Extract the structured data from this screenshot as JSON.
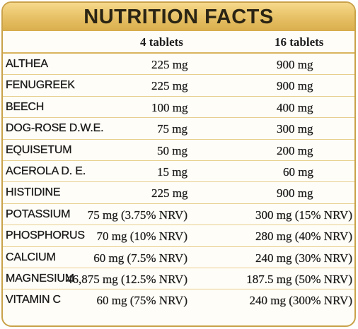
{
  "title": "NUTRITION FACTS",
  "columns": [
    "4 tablets",
    "16 tablets"
  ],
  "rows": [
    {
      "name": "ALTHEA",
      "v1": "225 mg",
      "v2": "900 mg"
    },
    {
      "name": "FENUGREEK",
      "v1": "225 mg",
      "v2": "900 mg"
    },
    {
      "name": "BEECH",
      "v1": "100 mg",
      "v2": "400 mg"
    },
    {
      "name": "DOG-ROSE D.W.E.",
      "v1": "75 mg",
      "v2": "300 mg"
    },
    {
      "name": "EQUISETUM",
      "v1": "50 mg",
      "v2": "200 mg"
    },
    {
      "name": "ACEROLA D. E.",
      "v1": "15 mg",
      "v2": "60 mg"
    },
    {
      "name": "HISTIDINE",
      "v1": "225 mg",
      "v2": "900 mg"
    },
    {
      "name": "POTASSIUM",
      "v1": "75 mg (3.75% NRV)",
      "v2": "300 mg (15% NRV)"
    },
    {
      "name": "PHOSPHORUS",
      "v1": "70 mg (10% NRV)",
      "v2": "280 mg (40% NRV)"
    },
    {
      "name": "CALCIUM",
      "v1": "60 mg (7.5% NRV)",
      "v2": "240 mg (30% NRV)"
    },
    {
      "name": "MAGNESIUM",
      "v1": "46,875 mg (12.5% NRV)",
      "v2": "187.5 mg (50% NRV)"
    },
    {
      "name": "VITAMIN C",
      "v1": "60 mg (75% NRV)",
      "v2": "240 mg (300% NRV)"
    }
  ],
  "colors": {
    "gold": "#e9c46a",
    "border": "#c9a24a",
    "rule": "#e7cf8e"
  }
}
